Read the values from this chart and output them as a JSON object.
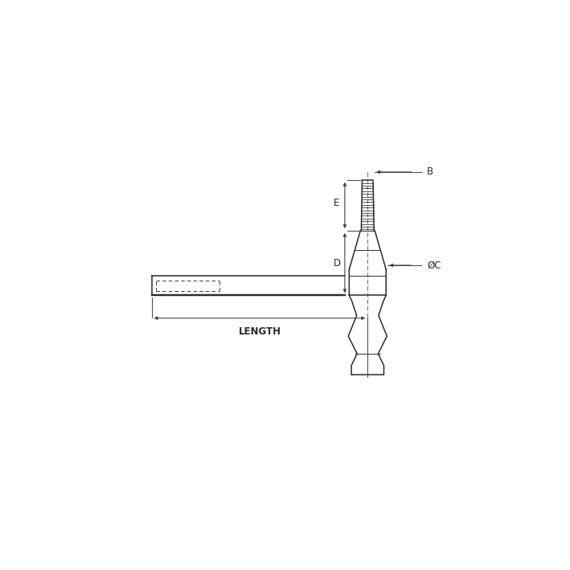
{
  "bg_color": "#ffffff",
  "line_color": "#2a2a2a",
  "dim_color": "#444444",
  "fig_width": 7.09,
  "fig_height": 7.09,
  "label_E": "E",
  "label_D": "D",
  "label_B": "B",
  "label_OC": "ØC",
  "label_LENGTH": "LENGTH",
  "thread_lines": 18,
  "xlim": [
    0,
    10
  ],
  "ylim": [
    0,
    10
  ]
}
